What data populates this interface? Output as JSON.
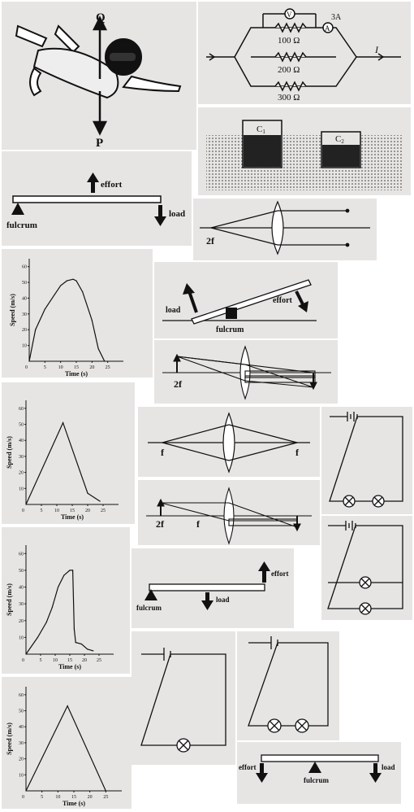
{
  "skydiver": {
    "force_up": "Q",
    "force_down": "P"
  },
  "parallel_circuit": {
    "voltmeter": "V",
    "ammeter": "A",
    "ammeter_current": "3A",
    "r1": "100 Ω",
    "r2": "200 Ω",
    "r3": "300 Ω",
    "total_current": "I"
  },
  "containers": {
    "c1": "C",
    "c1_sub": "1",
    "c2": "C",
    "c2_sub": "2"
  },
  "lever1": {
    "effort": "effort",
    "load": "load",
    "fulcrum": "fulcrum"
  },
  "lens_2f_top": {
    "label": "2f"
  },
  "lever2": {
    "load": "load",
    "effort": "effort",
    "fulcrum": "fulcrum"
  },
  "lens_2f_mid": {
    "label": "2f"
  },
  "lens_f_f": {
    "left": "f",
    "right": "f"
  },
  "lens_2f_f": {
    "left": "2f",
    "right": "f"
  },
  "lever3": {
    "effort": "effort",
    "load": "load",
    "fulcrum": "fulcrum"
  },
  "lever4": {
    "effort": "effort",
    "fulcrum": "fulcrum",
    "load": "load"
  },
  "chart_data": [
    {
      "type": "line",
      "xlabel": "Time (s)",
      "ylabel": "Speed (m/s)",
      "xticks": [
        "5",
        "10",
        "15",
        "20",
        "25"
      ],
      "yticks": [
        "10",
        "20",
        "30",
        "40",
        "50",
        "60"
      ],
      "xlim": [
        0,
        30
      ],
      "ylim": [
        0,
        65
      ],
      "x": [
        0,
        2,
        5,
        8,
        10,
        12,
        14,
        15,
        17,
        20,
        22,
        24
      ],
      "y": [
        0,
        20,
        33,
        42,
        48,
        51,
        52,
        51,
        44,
        26,
        8,
        0
      ]
    },
    {
      "type": "line",
      "xlabel": "Time (s)",
      "ylabel": "Speed (m/s)",
      "xticks": [
        "5",
        "10",
        "15",
        "20",
        "25"
      ],
      "yticks": [
        "10",
        "20",
        "30",
        "40",
        "50",
        "60"
      ],
      "xlim": [
        0,
        30
      ],
      "ylim": [
        0,
        65
      ],
      "x": [
        0,
        12,
        20,
        24
      ],
      "y": [
        0,
        51,
        7,
        2
      ]
    },
    {
      "type": "line",
      "xlabel": "Time (s)",
      "ylabel": "Speed (m/s)",
      "xticks": [
        "5",
        "10",
        "15",
        "20",
        "25"
      ],
      "yticks": [
        "10",
        "20",
        "30",
        "40",
        "50",
        "60"
      ],
      "xlim": [
        0,
        30
      ],
      "ylim": [
        0,
        65
      ],
      "x": [
        0,
        4,
        7,
        9,
        11,
        13,
        15,
        16,
        16.5,
        17,
        19,
        21,
        23
      ],
      "y": [
        0,
        10,
        19,
        28,
        40,
        47,
        50,
        50,
        15,
        7,
        6,
        3,
        2
      ]
    },
    {
      "type": "line",
      "xlabel": "Time (s)",
      "ylabel": "Speed (m/s)",
      "xticks": [
        "5",
        "10",
        "15",
        "20",
        "25"
      ],
      "yticks": [
        "10",
        "20",
        "30",
        "40",
        "50",
        "60"
      ],
      "xlim": [
        0,
        30
      ],
      "ylim": [
        0,
        65
      ],
      "x": [
        0,
        13,
        25
      ],
      "y": [
        0,
        53,
        0
      ]
    }
  ]
}
